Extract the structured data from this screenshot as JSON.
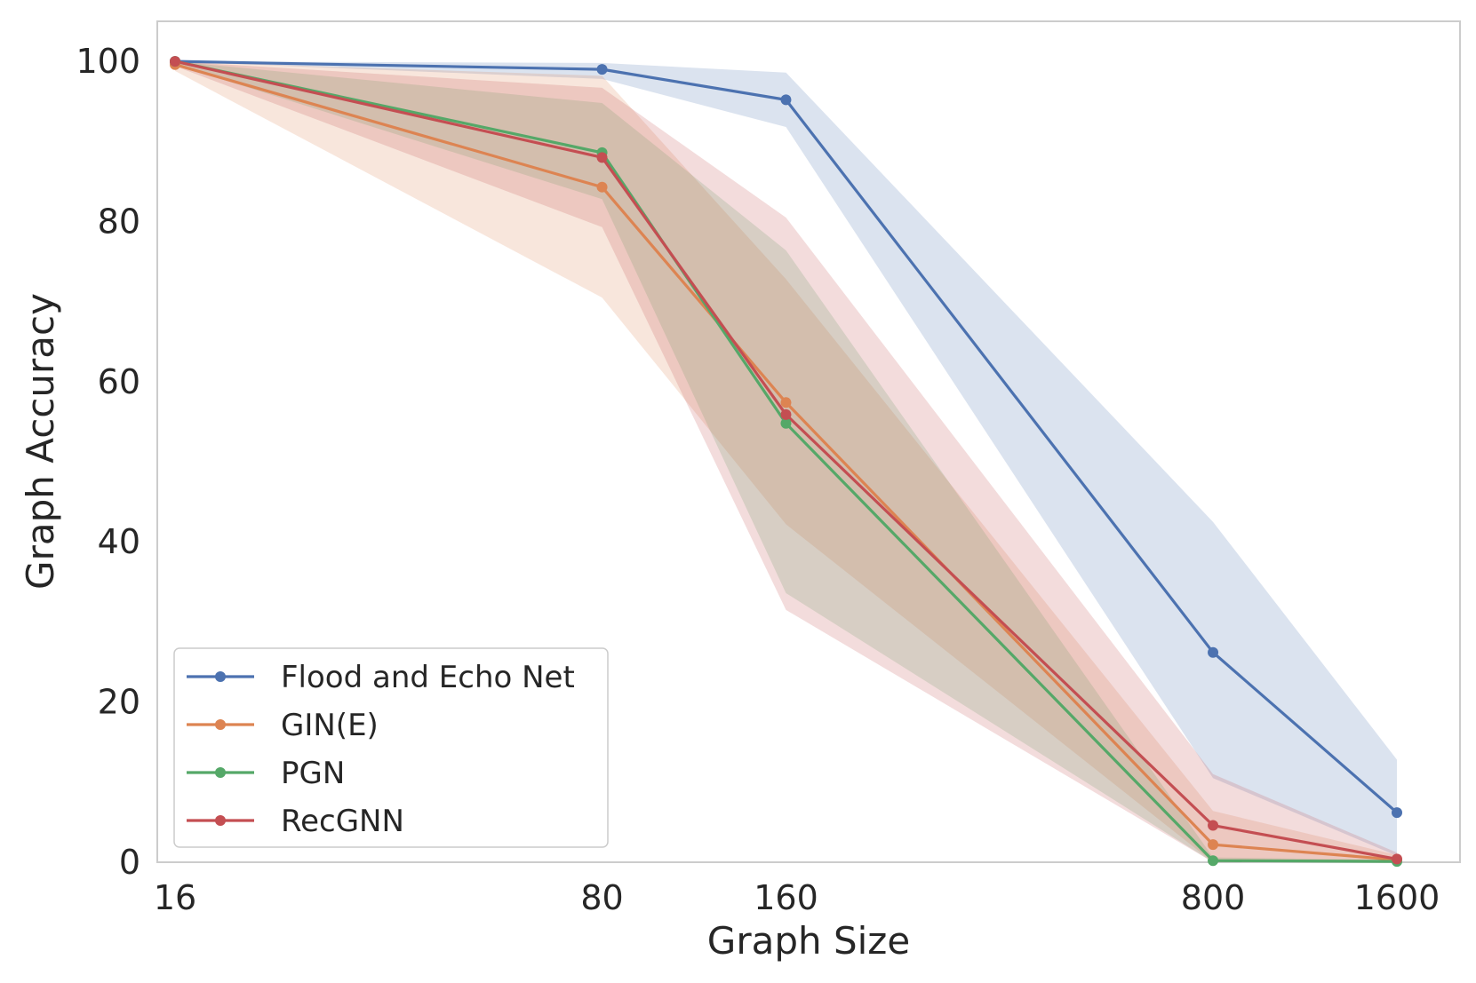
{
  "chart_data": {
    "type": "line",
    "title": "",
    "xlabel": "Graph Size",
    "ylabel": "Graph Accuracy",
    "x": [
      16,
      80,
      160,
      800,
      1600
    ],
    "x_tick_labels": [
      "16",
      "80",
      "160",
      "800",
      "1600"
    ],
    "x_scale": "log",
    "ylim": [
      0,
      105
    ],
    "y_ticks": [
      0,
      20,
      40,
      60,
      80,
      100
    ],
    "y_tick_labels": [
      "0",
      "20",
      "40",
      "60",
      "80",
      "100"
    ],
    "grid": false,
    "legend_position": "lower-left",
    "series": [
      {
        "name": "Flood and Echo Net",
        "color": "#4c72b0",
        "values": [
          100,
          99,
          95.2,
          26.2,
          6.2
        ],
        "lower": [
          100,
          97.8,
          91.8,
          10.5,
          0.8
        ],
        "upper": [
          100,
          99.8,
          98.6,
          42.5,
          12.8
        ]
      },
      {
        "name": "GIN(E)",
        "color": "#dd8452",
        "values": [
          99.6,
          84.3,
          57.4,
          2.2,
          0.3
        ],
        "lower": [
          98.8,
          70.5,
          42.2,
          0,
          0
        ],
        "upper": [
          100,
          98.2,
          72.8,
          6.4,
          0.9
        ]
      },
      {
        "name": "PGN",
        "color": "#55a868",
        "values": [
          100,
          88.6,
          54.8,
          0.2,
          0.1
        ],
        "lower": [
          99.6,
          82.8,
          33.6,
          0,
          0
        ],
        "upper": [
          100,
          94.8,
          76.4,
          0.6,
          0.3
        ]
      },
      {
        "name": "RecGNN",
        "color": "#c44e52",
        "values": [
          100,
          88,
          55.9,
          4.6,
          0.4
        ],
        "lower": [
          99.4,
          79.3,
          31.5,
          0,
          0
        ],
        "upper": [
          100,
          96.7,
          80.5,
          11,
          1.2
        ]
      }
    ]
  }
}
